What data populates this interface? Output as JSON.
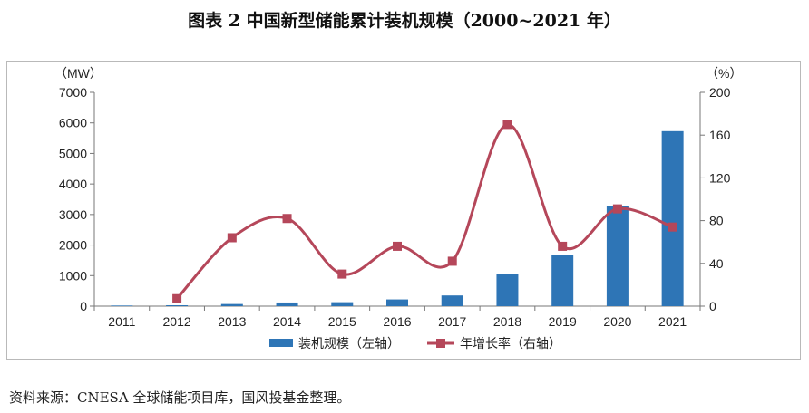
{
  "title": "图表 2  中国新型储能累计装机规模（2000~2021 年）",
  "source": "资料来源：CNESA 全球储能项目库，国风投基金整理。",
  "colors": {
    "bar": "#2e75b6",
    "line": "#b5475a",
    "marker": "#b5475a"
  },
  "chart_data": {
    "type": "bar+line",
    "categories": [
      "2011",
      "2012",
      "2013",
      "2014",
      "2015",
      "2016",
      "2017",
      "2018",
      "2019",
      "2020",
      "2021"
    ],
    "y_left": {
      "unit": "（MW）",
      "ylim": [
        0,
        7000
      ],
      "ticks": [
        "0",
        "1000",
        "2000",
        "3000",
        "4000",
        "5000",
        "6000",
        "7000"
      ]
    },
    "y_right": {
      "unit": "（%）",
      "ylim": [
        0,
        200
      ],
      "ticks": [
        "0",
        "40",
        "80",
        "120",
        "160",
        "200"
      ]
    },
    "series": [
      {
        "name": "装机规模（左轴）",
        "type": "bar",
        "axis": "left",
        "values": [
          20,
          30,
          70,
          120,
          130,
          220,
          350,
          1050,
          1680,
          3270,
          5730
        ]
      },
      {
        "name": "年增长率（右轴）",
        "type": "line",
        "axis": "right",
        "values": [
          null,
          7,
          64,
          82,
          30,
          56,
          42,
          170,
          56,
          91,
          74
        ]
      }
    ],
    "legend_position": "bottom-center",
    "grid": false
  }
}
